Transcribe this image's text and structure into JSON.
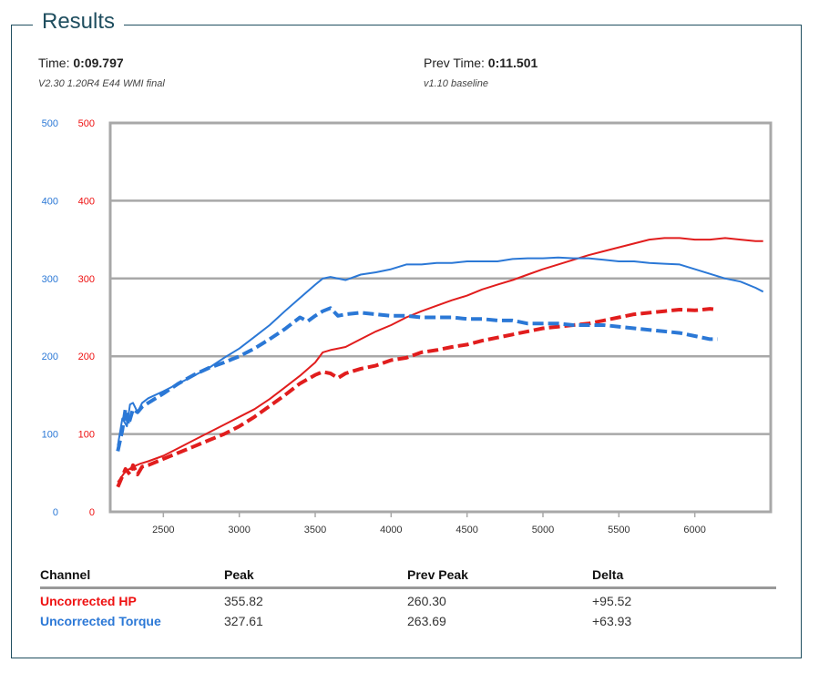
{
  "header": {
    "title": "Results"
  },
  "runs": {
    "current": {
      "label": "Time:",
      "time": "0:09.797",
      "description": "V2.30 1.20R4 E44 WMI final"
    },
    "previous": {
      "label": "Prev Time:",
      "time": "0:11.501",
      "description": "v1.10 baseline"
    }
  },
  "colors": {
    "hp": "#e11d1d",
    "torque": "#2b78d6",
    "grid": "#a8a8a8"
  },
  "chart_data": {
    "type": "line",
    "xlim": [
      2150,
      6500
    ],
    "x_ticks": [
      2500,
      3000,
      3500,
      4000,
      4500,
      5000,
      5500,
      6000
    ],
    "y_ticks_left_blue": [
      0,
      100,
      200,
      300,
      400,
      500
    ],
    "y_ticks_left_red": [
      0,
      100,
      200,
      300,
      400,
      500
    ],
    "ylim": [
      0,
      500
    ],
    "grid": true,
    "series": [
      {
        "name": "Uncorrected HP",
        "color": "#e11d1d",
        "style": "solid",
        "x": [
          2200,
          2250,
          2300,
          2350,
          2400,
          2500,
          2600,
          2700,
          2800,
          2900,
          3000,
          3100,
          3200,
          3300,
          3400,
          3500,
          3550,
          3600,
          3700,
          3800,
          3900,
          4000,
          4100,
          4200,
          4300,
          4400,
          4500,
          4600,
          4700,
          4800,
          4900,
          5000,
          5100,
          5200,
          5300,
          5400,
          5500,
          5600,
          5700,
          5800,
          5900,
          6000,
          6100,
          6200,
          6300,
          6400,
          6450
        ],
        "y": [
          38,
          52,
          58,
          62,
          65,
          72,
          82,
          92,
          102,
          112,
          122,
          132,
          145,
          160,
          175,
          192,
          205,
          208,
          212,
          222,
          232,
          240,
          250,
          258,
          265,
          272,
          278,
          286,
          292,
          298,
          305,
          312,
          318,
          324,
          330,
          335,
          340,
          345,
          350,
          352,
          352,
          350,
          350,
          352,
          350,
          348,
          348
        ]
      },
      {
        "name": "Uncorrected Torque",
        "color": "#2b78d6",
        "style": "solid",
        "x": [
          2200,
          2230,
          2260,
          2280,
          2300,
          2330,
          2360,
          2400,
          2500,
          2600,
          2700,
          2800,
          2900,
          3000,
          3100,
          3200,
          3300,
          3400,
          3500,
          3550,
          3600,
          3700,
          3800,
          3900,
          4000,
          4100,
          4200,
          4300,
          4400,
          4500,
          4600,
          4700,
          4800,
          4900,
          5000,
          5100,
          5200,
          5300,
          5400,
          5500,
          5600,
          5700,
          5800,
          5900,
          6000,
          6100,
          6200,
          6300,
          6400,
          6450
        ],
        "y": [
          85,
          120,
          110,
          138,
          140,
          128,
          140,
          146,
          155,
          165,
          175,
          185,
          198,
          210,
          225,
          240,
          258,
          275,
          292,
          300,
          302,
          298,
          305,
          308,
          312,
          318,
          318,
          320,
          320,
          322,
          322,
          322,
          325,
          326,
          326,
          327,
          326,
          326,
          324,
          322,
          322,
          320,
          319,
          318,
          312,
          306,
          300,
          296,
          288,
          283
        ]
      },
      {
        "name": "Prev Uncorrected HP",
        "color": "#e11d1d",
        "style": "dashed",
        "x": [
          2200,
          2250,
          2280,
          2300,
          2330,
          2360,
          2400,
          2500,
          2600,
          2700,
          2800,
          2900,
          3000,
          3100,
          3200,
          3300,
          3400,
          3500,
          3550,
          3600,
          3650,
          3700,
          3800,
          3900,
          4000,
          4100,
          4200,
          4300,
          4400,
          4500,
          4600,
          4700,
          4800,
          4900,
          5000,
          5100,
          5200,
          5300,
          5400,
          5500,
          5600,
          5700,
          5800,
          5900,
          6000,
          6100,
          6150
        ],
        "y": [
          32,
          55,
          48,
          60,
          48,
          58,
          60,
          68,
          76,
          84,
          92,
          100,
          110,
          122,
          136,
          150,
          165,
          176,
          180,
          178,
          172,
          178,
          184,
          188,
          195,
          198,
          205,
          208,
          212,
          215,
          220,
          224,
          228,
          232,
          236,
          238,
          240,
          242,
          246,
          250,
          254,
          256,
          258,
          260,
          259,
          261,
          260
        ]
      },
      {
        "name": "Prev Uncorrected Torque",
        "color": "#2b78d6",
        "style": "dashed",
        "x": [
          2200,
          2230,
          2250,
          2270,
          2300,
          2330,
          2360,
          2400,
          2500,
          2600,
          2700,
          2800,
          2900,
          3000,
          3100,
          3200,
          3300,
          3400,
          3450,
          3500,
          3550,
          3600,
          3650,
          3700,
          3800,
          3900,
          4000,
          4100,
          4200,
          4300,
          4400,
          4500,
          4600,
          4700,
          4800,
          4900,
          5000,
          5100,
          5200,
          5300,
          5400,
          5500,
          5600,
          5700,
          5800,
          5900,
          6000,
          6100,
          6150
        ],
        "y": [
          78,
          105,
          132,
          112,
          132,
          128,
          135,
          140,
          152,
          165,
          176,
          185,
          192,
          200,
          210,
          222,
          235,
          250,
          245,
          252,
          258,
          262,
          252,
          254,
          256,
          254,
          252,
          252,
          250,
          250,
          250,
          248,
          248,
          246,
          246,
          242,
          242,
          242,
          240,
          240,
          240,
          238,
          236,
          234,
          232,
          230,
          226,
          222,
          222
        ]
      }
    ]
  },
  "table": {
    "headers": [
      "Channel",
      "Peak",
      "Prev Peak",
      "Delta"
    ],
    "rows": [
      {
        "channel": "Uncorrected HP",
        "peak": "355.82",
        "prev_peak": "260.30",
        "delta": "+95.52"
      },
      {
        "channel": "Uncorrected Torque",
        "peak": "327.61",
        "prev_peak": "263.69",
        "delta": "+63.93"
      }
    ]
  }
}
